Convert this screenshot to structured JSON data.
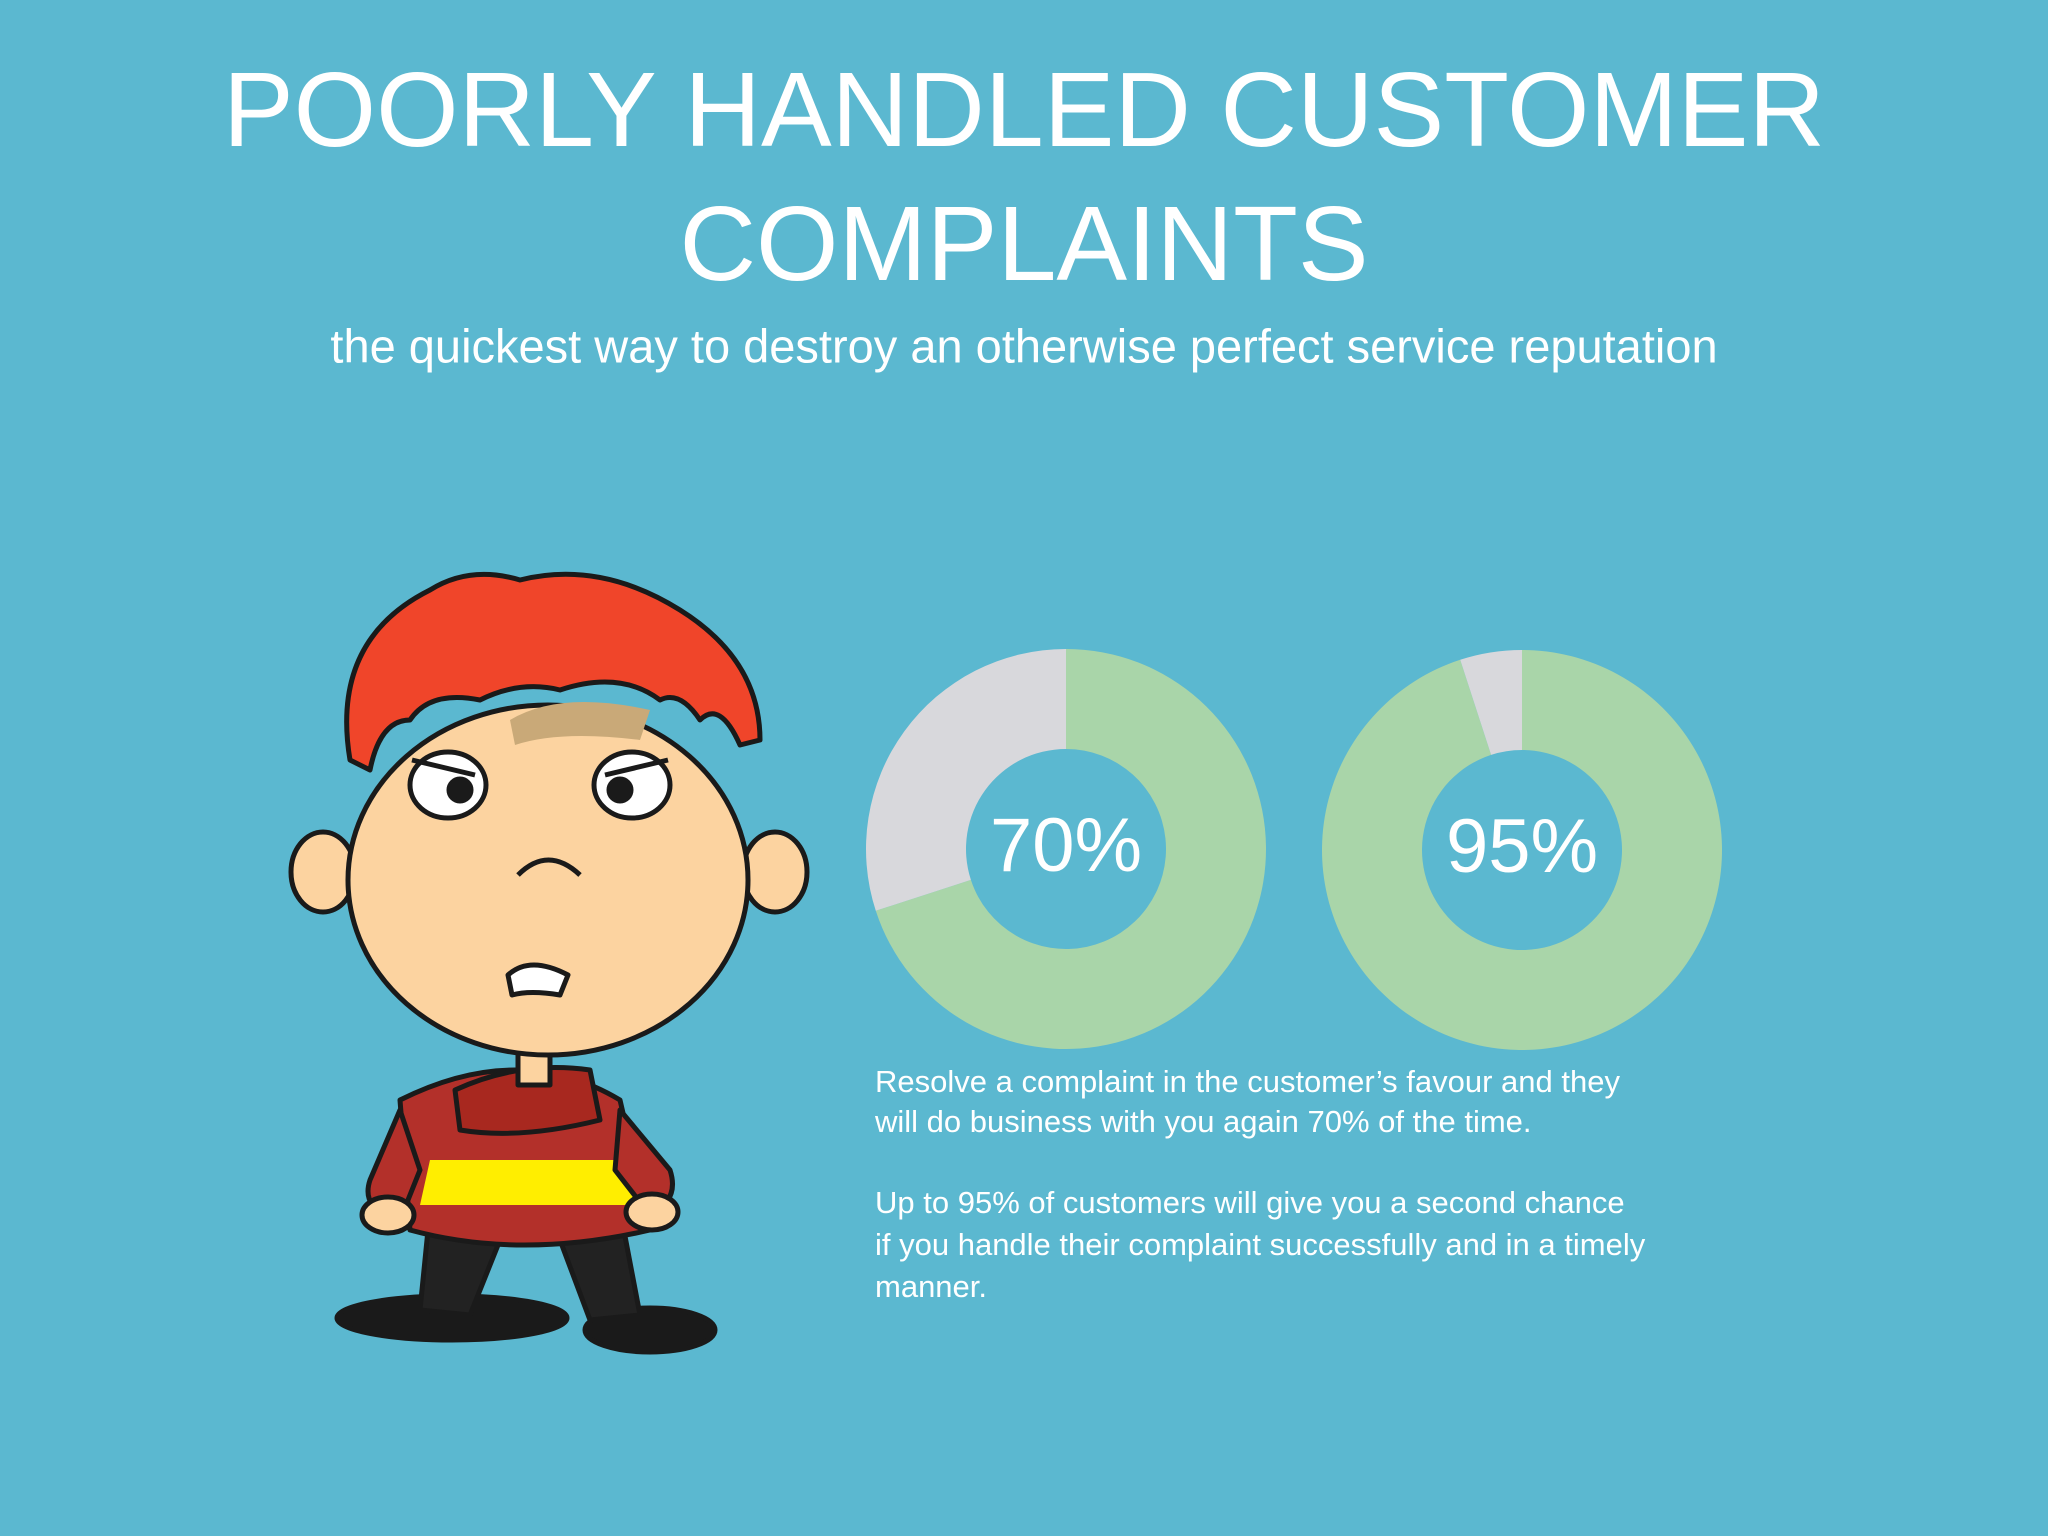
{
  "title": [
    "POORLY HANDLED CUSTOMER",
    "COMPLAINTS"
  ],
  "subtitle": "the quickest way to destroy an otherwise perfect service reputation",
  "paragraphs": [
    [
      "Resolve a complaint in the customer’s favour and they",
      "will do business with you again 70% of the time."
    ],
    [
      "Up to 95% of customers will give you a second chance",
      "if you handle their complaint successfully and in a timely",
      "manner."
    ]
  ],
  "chart_data": [
    {
      "type": "donut",
      "values": [
        70,
        30
      ],
      "value_labels": [
        "70%",
        null
      ],
      "colors": [
        "#a9d5a9",
        "#d8d8dc"
      ]
    },
    {
      "type": "donut",
      "values": [
        95,
        5
      ],
      "value_labels": [
        "95%",
        null
      ],
      "colors": [
        "#a9d5a9",
        "#d8d8dc"
      ]
    }
  ]
}
